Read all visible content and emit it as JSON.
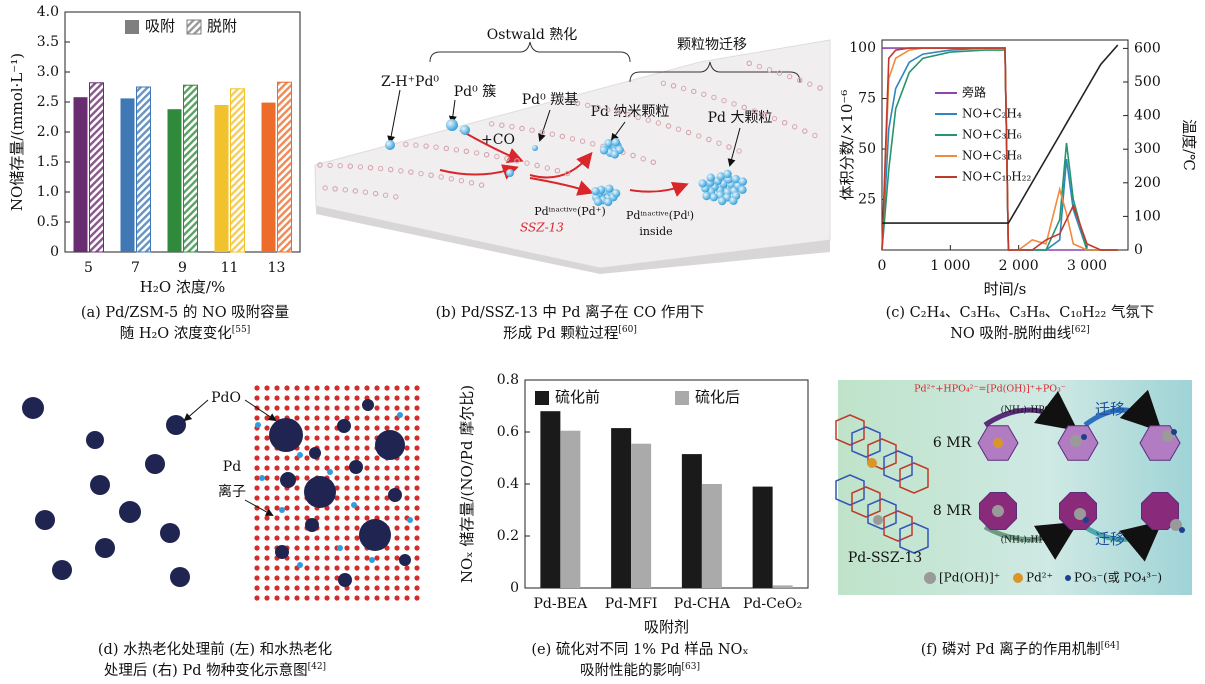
{
  "chart_data": [
    {
      "type": "bar",
      "ylabel": "NO储存量/(mmol·L⁻¹)",
      "xlabel": "H₂O 浓度/%",
      "categories": [
        "5",
        "7",
        "9",
        "11",
        "13"
      ],
      "category_colors": [
        "#6a2c70",
        "#3f78b5",
        "#2f8a3c",
        "#f2c12e",
        "#ee6c2a"
      ],
      "series": [
        {
          "name": "吸附",
          "color": "#7f7f7f",
          "values": [
            2.58,
            2.56,
            2.38,
            2.45,
            2.49
          ]
        },
        {
          "name": "脱附",
          "color": "#7f7f7f",
          "pattern": "hatch",
          "values": [
            2.82,
            2.75,
            2.78,
            2.72,
            2.83
          ]
        }
      ],
      "ylim": [
        0,
        4
      ],
      "yticks": [
        0,
        0.5,
        {
          "value": 1,
          "label": "1.0"
        },
        1.5,
        {
          "value": 2,
          "label": "2.0"
        },
        2.5,
        {
          "value": 3,
          "label": "3.0"
        },
        3.5,
        {
          "value": 4,
          "label": "4.0"
        }
      ],
      "legend": "upper center"
    },
    {
      "type": "line",
      "xlabel": "时间/s",
      "ylabel": "体积分数/×10⁻⁶",
      "y2label": "温度/℃",
      "x": [
        0,
        100,
        200,
        400,
        600,
        1000,
        1500,
        1800,
        1850,
        2000,
        2200,
        2400,
        2600,
        2700,
        2800,
        3000,
        3200,
        3450
      ],
      "series": [
        {
          "name": "旁路",
          "color": "#8e44ad",
          "values": [
            100,
            100,
            100,
            100,
            100,
            100,
            100,
            100,
            0,
            0,
            0,
            0,
            0,
            0,
            0,
            0,
            0,
            0
          ]
        },
        {
          "name": "NO+C₂H₄",
          "color": "#2e86c1",
          "values": [
            0,
            60,
            80,
            93,
            97,
            99,
            100,
            100,
            0,
            0,
            0,
            0,
            5,
            45,
            20,
            0,
            0,
            0
          ]
        },
        {
          "name": "NO+C₃H₆",
          "color": "#27956b",
          "values": [
            0,
            40,
            70,
            88,
            95,
            98,
            99,
            99,
            0,
            0,
            0,
            0,
            15,
            53,
            25,
            0,
            0,
            0
          ]
        },
        {
          "name": "NO+C₃H₈",
          "color": "#f08a3c",
          "values": [
            0,
            85,
            95,
            99,
            100,
            100,
            100,
            100,
            0,
            0,
            5,
            3,
            30,
            18,
            3,
            0,
            0,
            0
          ]
        },
        {
          "name": "NO+C₁₀H₂₂",
          "color": "#c0392b",
          "values": [
            0,
            95,
            99,
            100,
            100,
            100,
            100,
            100,
            0,
            0,
            0,
            5,
            8,
            15,
            22,
            3,
            0,
            0
          ]
        },
        {
          "color": "#222222",
          "axis": "y2",
          "values": [
            80,
            80,
            80,
            80,
            80,
            80,
            80,
            80,
            80,
            132,
            202,
            272,
            342,
            377,
            412,
            482,
            552,
            610
          ]
        }
      ],
      "xlim": [
        0,
        3600
      ],
      "xticks": [
        0,
        {
          "value": 1000,
          "label": "1 000"
        },
        {
          "value": 2000,
          "label": "2 000"
        },
        {
          "value": 3000,
          "label": "3 000"
        }
      ],
      "ylim": [
        0,
        104
      ],
      "yticks": [
        25,
        50,
        75,
        100
      ],
      "y2lim": [
        0,
        625
      ],
      "y2ticks": [
        0,
        100,
        200,
        300,
        400,
        500,
        600
      ],
      "legend": "center left"
    },
    {
      "type": "bar",
      "ylabel": "NOₓ 储存量/(NO/Pd 摩尔比)",
      "xlabel": "吸附剂",
      "categories": [
        "Pd-BEA",
        "Pd-MFI",
        "Pd-CHA",
        "Pd-CeO₂"
      ],
      "series": [
        {
          "name": "硫化前",
          "color": "#1a1a1a",
          "values": [
            0.68,
            0.615,
            0.515,
            0.39
          ]
        },
        {
          "name": "硫化后",
          "color": "#aaaaaa",
          "values": [
            0.605,
            0.555,
            0.4,
            0.01
          ]
        }
      ],
      "ylim": [
        0,
        0.8
      ],
      "yticks": [
        0,
        0.2,
        0.4,
        0.6,
        0.8
      ],
      "legend": "upper center"
    }
  ],
  "captions": [
    {
      "lines": [
        "(a) Pd/ZSM-5 的 NO 吸附容量",
        "随 H₂O 浓度变化"
      ],
      "ref": "[55]"
    },
    {
      "lines": [
        "(b) Pd/SSZ-13 中 Pd 离子在 CO 作用下",
        "形成 Pd 颗粒过程"
      ],
      "ref": "[60]"
    },
    {
      "lines": [
        "(c) C₂H₄、C₃H₆、C₃H₈、C₁₀H₂₂ 气氛下",
        "NO 吸附-脱附曲线"
      ],
      "ref": "[62]"
    },
    {
      "lines": [
        "(d) 水热老化处理前 (左) 和水热老化",
        "处理后 (右) Pd 物种变化示意图"
      ],
      "ref": "[42]"
    },
    {
      "lines": [
        "(e) 硫化对不同 1% Pd 样品 NOₓ",
        "吸附性能的影响"
      ],
      "ref": "[63]"
    },
    {
      "lines": [
        "(f) 磷对 Pd 离子的作用机制"
      ],
      "ref": "[64]"
    }
  ],
  "diagram_b": {
    "stage1": "Ostwald 熟化",
    "stage2": "颗粒物迁移",
    "labels": [
      "Z-H⁺Pd⁰",
      "Pd⁰ 簇",
      "Pd⁰ 羰基",
      "Pd 纳米颗粒",
      "Pd 大颗粒"
    ],
    "co": "+CO",
    "support": "SSZ-13",
    "inactive1": "Pdⁱⁿᵃᶜᵗⁱᵛᵉ(Pd⁺)",
    "inactive2": "Pdⁱⁿᵃᶜᵗⁱᵛᵉ(Pdⁱ)",
    "inside": "inside"
  },
  "diagram_d": {
    "pdo": "PdO",
    "pd": "Pd",
    "ion": "离子"
  },
  "diagram_f": {
    "equation": "Pd²⁺+HPO₄²⁻=[Pd(OH)]⁺+PO₃⁻",
    "ring6": "6 MR",
    "ring8": "8 MR",
    "reagent": "(NH₄)₂HPO₄",
    "migrate": "迁移",
    "framework": "Pd-SSZ-13",
    "legend": [
      "[Pd(OH)]⁺",
      "Pd²⁺",
      "PO₃⁻(或 PO₄³⁻)"
    ]
  }
}
